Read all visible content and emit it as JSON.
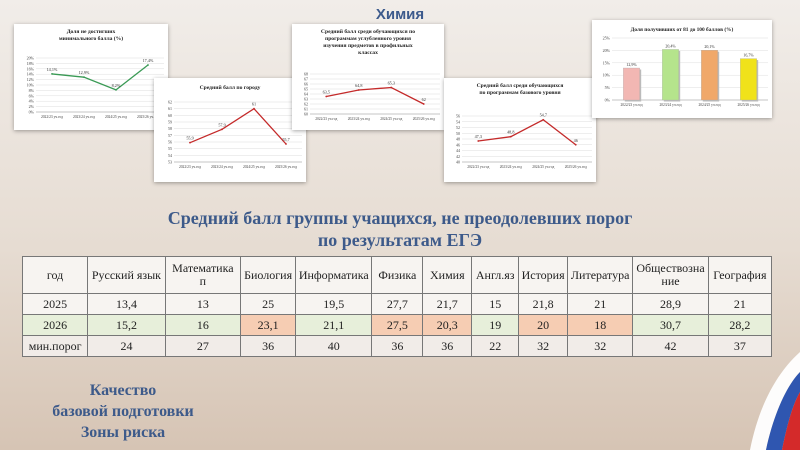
{
  "slide": {
    "title": "Химия",
    "heading_line1": "Средний балл группы учащихся, не преодолевших порог",
    "heading_line2": "по результатам ЕГЭ",
    "footer_line1": "Качество",
    "footer_line2": "базовой подготовки",
    "footer_line3": "Зоны риска"
  },
  "chart_data": [
    {
      "id": "c1",
      "type": "line",
      "title": "Доля не достигших минимального балла (%)",
      "categories": [
        "2022/23 уч.год",
        "2023/24 уч.год",
        "2024/25 уч.год",
        "2025/26 уч.год"
      ],
      "values": [
        14.1,
        12.9,
        8.2,
        17.4
      ],
      "value_labels": [
        "14,1%",
        "12,9%",
        "8,2%",
        "17,4%"
      ],
      "ylim": [
        0,
        20
      ],
      "yticks": [
        "0%",
        "2%",
        "4%",
        "6%",
        "8%",
        "10%",
        "12%",
        "14%",
        "16%",
        "18%",
        "20%"
      ],
      "color": "#3a9a55"
    },
    {
      "id": "c2",
      "type": "line",
      "title": "Средний балл по городу",
      "categories": [
        "2022/23 уч.год",
        "2023/24 уч.год",
        "2024/25 уч.год",
        "2025/26 уч.год"
      ],
      "values": [
        55.9,
        57.9,
        61,
        55.7
      ],
      "value_labels": [
        "55,9",
        "57,9",
        "61",
        "55,7"
      ],
      "ylim": [
        53,
        62
      ],
      "yticks": [
        "53",
        "54",
        "55",
        "56",
        "57",
        "58",
        "59",
        "60",
        "61",
        "62"
      ],
      "color": "#c42a2a"
    },
    {
      "id": "c3",
      "type": "line",
      "title": "Средний балл среди обучающихся по программам углубленного уровня изучения предметов в профильных классах",
      "categories": [
        "2022/23 уч.год",
        "2023/24 уч.год",
        "2024/25 уч.год",
        "2025/26 уч.год"
      ],
      "values": [
        63.5,
        64.8,
        65.3,
        62
      ],
      "value_labels": [
        "63,5",
        "64,8",
        "65,3",
        "62"
      ],
      "ylim": [
        60,
        68
      ],
      "yticks": [
        "60",
        "61",
        "62",
        "63",
        "64",
        "65",
        "66",
        "67",
        "68"
      ],
      "color": "#c42a2a"
    },
    {
      "id": "c4",
      "type": "line",
      "title": "Средний балл среди обучающихся по программам базового уровня",
      "categories": [
        "2022/23 уч.год",
        "2023/24 уч.год",
        "2024/25 уч.год",
        "2025/26 уч.год"
      ],
      "values": [
        47.3,
        48.8,
        54.7,
        46
      ],
      "value_labels": [
        "47,3",
        "48,8",
        "54,7",
        "46"
      ],
      "ylim": [
        40,
        56
      ],
      "yticks": [
        "40",
        "42",
        "44",
        "46",
        "48",
        "50",
        "52",
        "54",
        "56"
      ],
      "color": "#c42a2a"
    },
    {
      "id": "c5",
      "type": "bar",
      "title": "Доля получивших от 81 до 100 баллов (%)",
      "categories": [
        "2022/23 уч.год",
        "2023/24 уч.год",
        "2024/25 уч.год",
        "2025/26 уч.год"
      ],
      "values": [
        12.9,
        20.4,
        20.1,
        16.7
      ],
      "value_labels": [
        "12,9%",
        "20,4%",
        "20,1%",
        "16,7%"
      ],
      "ylim": [
        0,
        25
      ],
      "yticks": [
        "0%",
        "5%",
        "10%",
        "15%",
        "20%",
        "25%"
      ],
      "colors": [
        "#f2b7b3",
        "#b5e48c",
        "#f0a86a",
        "#f0e21a"
      ]
    }
  ],
  "table": {
    "header": [
      "год",
      "Русский язык",
      "Математика п",
      "Биология",
      "Информатика",
      "Физика",
      "Химия",
      "Англ.яз",
      "История",
      "Литература",
      "Обществознание",
      "География"
    ],
    "rows": [
      {
        "cells": [
          "2025",
          "13,4",
          "13",
          "25",
          "19,5",
          "27,7",
          "21,7",
          "15",
          "21,8",
          "21",
          "28,9",
          "21"
        ]
      },
      {
        "cells": [
          "2026",
          "15,2",
          "16",
          "23,1",
          "21,1",
          "27,5",
          "20,3",
          "19",
          "20",
          "18",
          "30,7",
          "28,2"
        ]
      },
      {
        "cells": [
          "мин.порог",
          "24",
          "27",
          "36",
          "40",
          "36",
          "36",
          "22",
          "32",
          "32",
          "42",
          "37"
        ]
      }
    ]
  }
}
